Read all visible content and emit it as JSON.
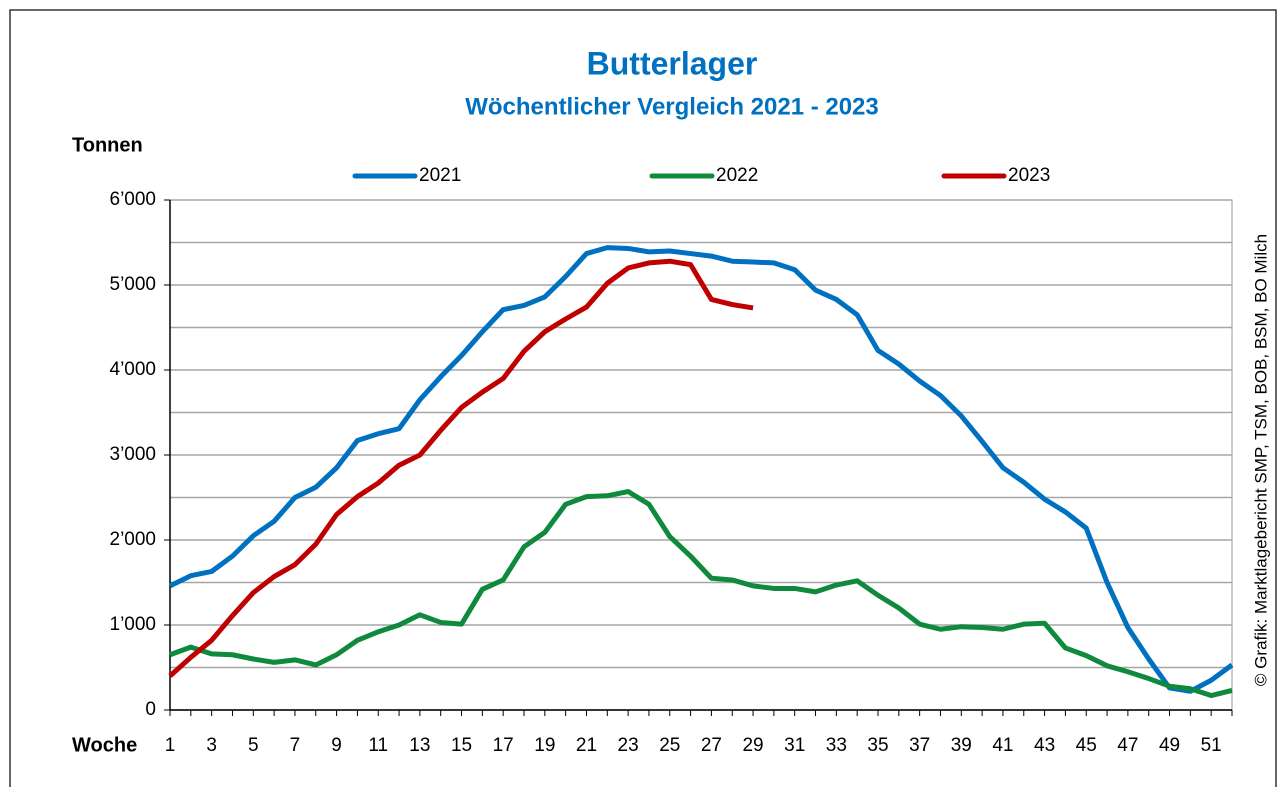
{
  "chart_data": {
    "type": "line",
    "title": "Butterlager",
    "subtitle": "Wöchentlicher Vergleich 2021 - 2023",
    "y_label": "Tonnen",
    "x_label": "Woche",
    "source": "© Grafik: Marktlagebericht SMP, TSM, BOB, BSM, BO Milch",
    "categories": [
      1,
      null,
      3,
      null,
      5,
      null,
      7,
      null,
      9,
      null,
      11,
      null,
      13,
      null,
      15,
      null,
      17,
      null,
      19,
      null,
      21,
      null,
      23,
      null,
      25,
      null,
      27,
      null,
      29,
      null,
      31,
      null,
      33,
      null,
      35,
      null,
      37,
      null,
      39,
      null,
      41,
      null,
      43,
      null,
      45,
      null,
      47,
      null,
      49,
      null,
      51,
      null
    ],
    "series": [
      {
        "name": "2021",
        "color": "#0070c0",
        "values": [
          1460,
          1580,
          1630,
          1810,
          2050,
          2220,
          2500,
          2620,
          2850,
          3170,
          3250,
          3310,
          3650,
          3920,
          4170,
          4450,
          4710,
          4760,
          4860,
          5100,
          5370,
          5440,
          5430,
          5390,
          5400,
          5370,
          5340,
          5280,
          5270,
          5260,
          5180,
          4940,
          4830,
          4650,
          4230,
          4070,
          3870,
          3700,
          3460,
          3160,
          2850,
          2680,
          2480,
          2330,
          2140,
          1500,
          970,
          600,
          260,
          220,
          350,
          530
        ]
      },
      {
        "name": "2022",
        "color": "#0f8a3c",
        "values": [
          650,
          740,
          660,
          650,
          600,
          560,
          590,
          530,
          650,
          820,
          920,
          1000,
          1120,
          1030,
          1010,
          1420,
          1530,
          1920,
          2090,
          2420,
          2510,
          2520,
          2570,
          2420,
          2040,
          1810,
          1550,
          1530,
          1460,
          1430,
          1430,
          1390,
          1470,
          1520,
          1350,
          1200,
          1010,
          950,
          980,
          970,
          950,
          1010,
          1020,
          730,
          640,
          520,
          450,
          370,
          280,
          250,
          170,
          230
        ]
      },
      {
        "name": "2023",
        "color": "#c00000",
        "values": [
          400,
          620,
          820,
          1110,
          1380,
          1570,
          1710,
          1950,
          2300,
          2510,
          2670,
          2880,
          3000,
          3290,
          3560,
          3740,
          3900,
          4220,
          4450,
          4600,
          4740,
          5020,
          5200,
          5260,
          5280,
          5240,
          4830,
          4770,
          4730,
          null,
          null,
          null,
          null,
          null,
          null,
          null,
          null,
          null,
          null,
          null,
          null,
          null,
          null,
          null,
          null,
          null,
          null,
          null,
          null,
          null,
          null,
          null
        ]
      }
    ],
    "ylim": [
      0,
      6000
    ],
    "yticks": [
      0,
      {
        "value": 1000,
        "label": "1’000"
      },
      {
        "value": 2000,
        "label": "2’000"
      },
      {
        "value": 3000,
        "label": "3’000"
      },
      {
        "value": 4000,
        "label": "4’000"
      },
      {
        "value": 5000,
        "label": "5’000"
      },
      {
        "value": 6000,
        "label": "6’000"
      }
    ],
    "yminor": [
      500,
      1500,
      2500,
      3500,
      4500,
      5500
    ],
    "grid": true
  }
}
